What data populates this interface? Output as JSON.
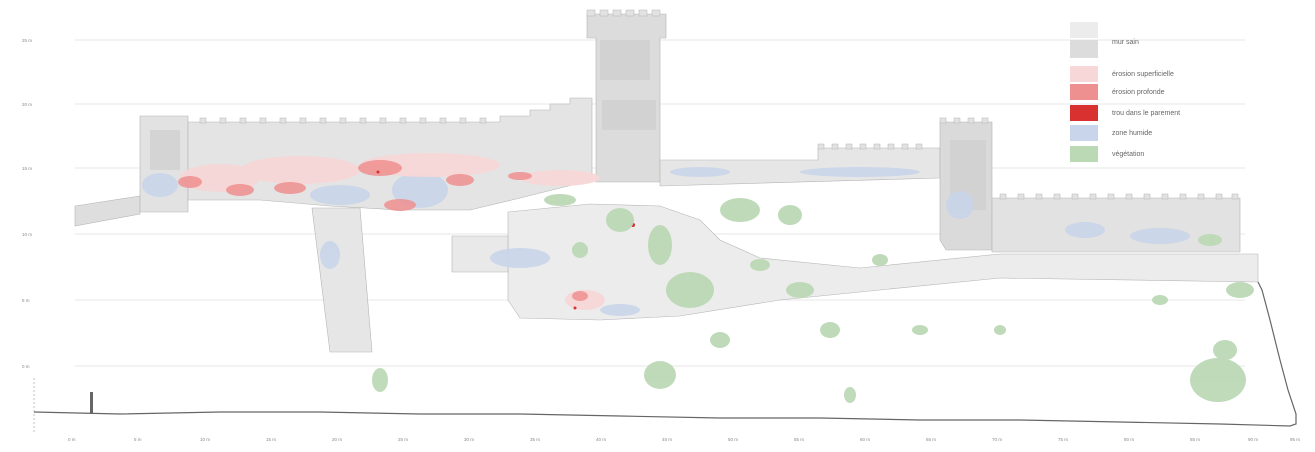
{
  "legend": {
    "items": [
      {
        "label": "mur sain",
        "color": "#dcdcdc"
      },
      {
        "label": "érosion superficielle",
        "color": "#f7d7d7"
      },
      {
        "label": "érosion profonde",
        "color": "#ef9090"
      },
      {
        "label": "trou dans le parement",
        "color": "#d93030"
      },
      {
        "label": "zone humide",
        "color": "#c9d5ea"
      },
      {
        "label": "végétation",
        "color": "#bcd9b6"
      }
    ]
  },
  "colors": {
    "wall_light": "#ececec",
    "wall": "#dedede",
    "wall_dark": "#d0d0d0",
    "outline": "#b5b5b5",
    "ground": "#666666",
    "guide": "#cfcfcf"
  },
  "axes": {
    "y_ticks": [
      "25 m",
      "20 m",
      "15 m",
      "10 m",
      "5 m",
      "0 m"
    ],
    "x_ticks": [
      "0 m",
      "5 m",
      "10 m",
      "15 m",
      "20 m",
      "25 m",
      "30 m",
      "35 m",
      "40 m",
      "45 m",
      "50 m",
      "55 m",
      "60 m",
      "65 m",
      "70 m",
      "75 m",
      "80 m",
      "85 m",
      "90 m",
      "95 m"
    ]
  }
}
